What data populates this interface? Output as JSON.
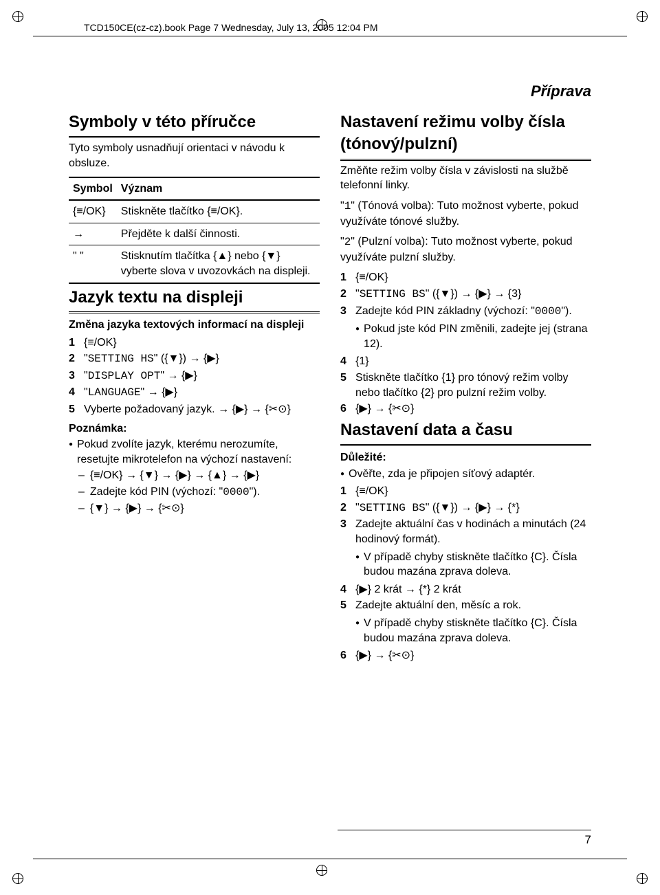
{
  "header": "TCD150CE(cz-cz).book  Page 7  Wednesday, July 13, 2005  12:04 PM",
  "section_category": "Příprava",
  "page_number": "7",
  "left": {
    "h_symbols": "Symboly v této příručce",
    "symbols_intro": "Tyto symboly usnadňují orientaci v návodu k obsluze.",
    "tbl_h1": "Symbol",
    "tbl_h2": "Význam",
    "r1c1": "{≡/OK}",
    "r1c2": "Stiskněte tlačítko {≡/OK}.",
    "r2c1": "→",
    "r2c2": "Přejděte k další činnosti.",
    "r3c1": "\" \"",
    "r3c2": "Stisknutím tlačítka {▲} nebo {▼} vyberte slova v uvozovkách na displeji.",
    "h_lang": "Jazyk textu na displeji",
    "lang_sub": "Změna jazyka textových informací na displeji",
    "lang_s1": "{≡/OK}",
    "lang_s2_a": "\"",
    "lang_s2_m": "SETTING HS",
    "lang_s2_b": "\" ({▼}) → {▶}",
    "lang_s3_a": "\"",
    "lang_s3_m": "DISPLAY OPT",
    "lang_s3_b": "\" → {▶}",
    "lang_s4_a": "\"",
    "lang_s4_m": "LANGUAGE",
    "lang_s4_b": "\" → {▶}",
    "lang_s5": "Vyberte požadovaný jazyk. → {▶} → {✂⊙}",
    "note_h": "Poznámka:",
    "note_b1": "Pokud zvolíte jazyk, kterému nerozumíte, resetujte mikrotelefon na výchozí nastavení:",
    "note_d1": "{≡/OK} → {▼} → {▶} → {▲} → {▶}",
    "note_d2_a": "Zadejte kód PIN (výchozí: \"",
    "note_d2_m": "0000",
    "note_d2_b": "\").",
    "note_d3": "{▼} → {▶} → {✂⊙}"
  },
  "right": {
    "h_dial": "Nastavení režimu volby čísla (tónový/pulzní)",
    "dial_intro": "Změňte režim volby čísla v závislosti na službě telefonní linky.",
    "dial_t_a": "\"",
    "dial_t_m": "1",
    "dial_t_b": "\" (Tónová volba): Tuto možnost vyberte, pokud využíváte tónové služby.",
    "dial_p_a": "\"",
    "dial_p_m": "2",
    "dial_p_b": "\" (Pulzní volba): Tuto možnost vyberte, pokud využíváte pulzní služby.",
    "dial_s1": "{≡/OK}",
    "dial_s2_a": "\"",
    "dial_s2_m": "SETTING BS",
    "dial_s2_b": "\" ({▼}) → {▶} → {3}",
    "dial_s3_a": "Zadejte kód PIN základny (výchozí: \"",
    "dial_s3_m": "0000",
    "dial_s3_b": "\").",
    "dial_s3_sub": "Pokud jste kód PIN změnili, zadejte jej (strana 12).",
    "dial_s4": "{1}",
    "dial_s5": "Stiskněte tlačítko {1} pro tónový režim volby nebo tlačítko {2} pro pulzní režim volby.",
    "dial_s6": "{▶} → {✂⊙}",
    "h_date": "Nastavení data a času",
    "date_imp": "Důležité:",
    "date_b1": "Ověřte, zda je připojen síťový adaptér.",
    "date_s1": "{≡/OK}",
    "date_s2_a": "\"",
    "date_s2_m": "SETTING BS",
    "date_s2_b": "\" ({▼}) → {▶} → {*}",
    "date_s3": "Zadejte aktuální čas v hodinách a minutách (24 hodinový formát).",
    "date_s3_sub": "V případě chyby stiskněte tlačítko {C}. Čísla budou mazána zprava doleva.",
    "date_s4": "{▶} 2 krát → {*} 2 krát",
    "date_s5": "Zadejte aktuální den, měsíc a rok.",
    "date_s5_sub": "V případě chyby stiskněte tlačítko {C}. Čísla budou mazána zprava doleva.",
    "date_s6": "{▶} → {✂⊙}"
  }
}
